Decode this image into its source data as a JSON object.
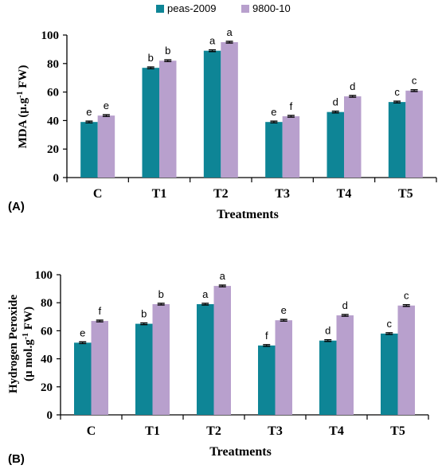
{
  "legend": {
    "series": [
      {
        "name": "peas-2009",
        "color": "#0e8596"
      },
      {
        "name": "9800-10",
        "color": "#b8a0cd"
      }
    ]
  },
  "chart_data": [
    {
      "type": "bar",
      "panel_label": "(A)",
      "categories": [
        "C",
        "T1",
        "T2",
        "T3",
        "T4",
        "T5"
      ],
      "xlabel": "Treatments",
      "ylabel": "MDA (μ.g-1 FW)",
      "ylabel_main": "MDA (μ.g",
      "ylabel_sup": "-1",
      "ylabel_tail": " FW)",
      "ylim": [
        0,
        100
      ],
      "yticks": [
        0,
        20,
        40,
        60,
        80,
        100
      ],
      "grid": false,
      "legend_position": "top-center",
      "series": [
        {
          "name": "peas-2009",
          "values": [
            39,
            77,
            89,
            39,
            46,
            53
          ],
          "errors": [
            0.6,
            0.6,
            0.6,
            0.6,
            0.6,
            0.6
          ],
          "labels": [
            "e",
            "b",
            "a",
            "e",
            "d",
            "c"
          ]
        },
        {
          "name": "9800-10",
          "values": [
            43.5,
            82,
            95,
            43,
            57,
            61
          ],
          "errors": [
            0.6,
            0.6,
            0.6,
            0.6,
            0.6,
            0.6
          ],
          "labels": [
            "e",
            "b",
            "a",
            "f",
            "d",
            "c"
          ]
        }
      ]
    },
    {
      "type": "bar",
      "panel_label": "(B)",
      "categories": [
        "C",
        "T1",
        "T2",
        "T3",
        "T4",
        "T5"
      ],
      "xlabel": "Treatments",
      "ylabel": "Hydrogen Peroxide (μ mol.g-1 FW)",
      "ylabel_line1": "Hydrogen Peroxide",
      "ylabel_main": "(μ mol.g",
      "ylabel_sup": "-1",
      "ylabel_tail": " FW)",
      "ylim": [
        0,
        100
      ],
      "yticks": [
        0,
        20,
        40,
        60,
        80,
        100
      ],
      "grid": false,
      "series": [
        {
          "name": "peas-2009",
          "values": [
            51.5,
            65,
            79,
            49.5,
            53,
            58
          ],
          "errors": [
            0.6,
            0.6,
            0.6,
            0.6,
            0.6,
            0.6
          ],
          "labels": [
            "e",
            "b",
            "a",
            "f",
            "d",
            "c"
          ]
        },
        {
          "name": "9800-10",
          "values": [
            67,
            79,
            92,
            67.5,
            71,
            78
          ],
          "errors": [
            0.6,
            0.6,
            0.6,
            0.6,
            0.6,
            0.6
          ],
          "labels": [
            "f",
            "b",
            "a",
            "e",
            "d",
            "c"
          ]
        }
      ]
    }
  ]
}
